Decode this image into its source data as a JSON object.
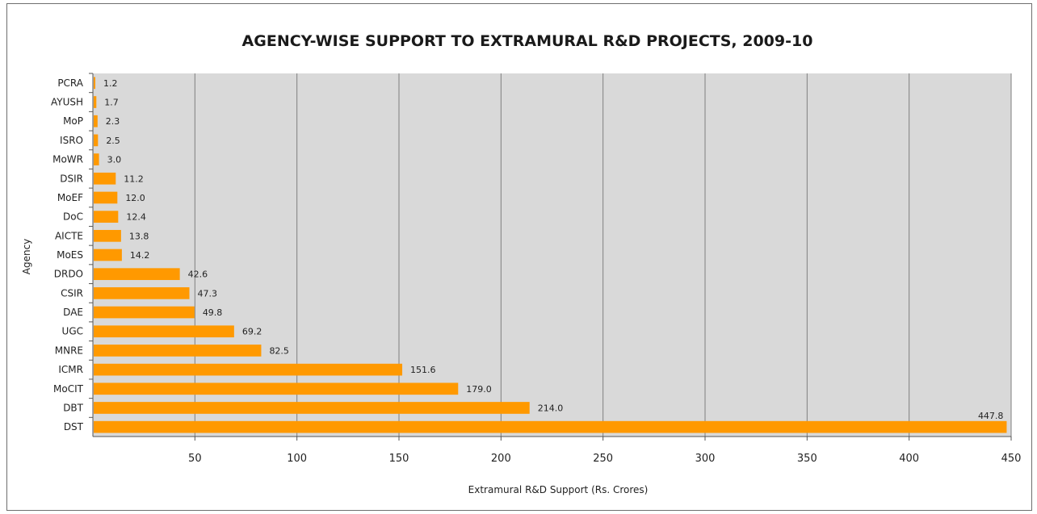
{
  "chart_data": {
    "type": "bar",
    "orientation": "horizontal",
    "title": "AGENCY-WISE SUPPORT TO EXTRAMURAL R&D PROJECTS, 2009-10",
    "xlabel": "Extramural R&D Support (Rs. Crores)",
    "ylabel": "Agency",
    "categories": [
      "PCRA",
      "AYUSH",
      "MoP",
      "ISRO",
      "MoWR",
      "DSIR",
      "MoEF",
      "DoC",
      "AICTE",
      "MoES",
      "DRDO",
      "CSIR",
      "DAE",
      "UGC",
      "MNRE",
      "ICMR",
      "MoCIT",
      "DBT",
      "DST"
    ],
    "values": [
      1.2,
      1.7,
      2.3,
      2.5,
      3.0,
      11.2,
      12.0,
      12.4,
      13.8,
      14.2,
      42.6,
      47.3,
      49.8,
      69.2,
      82.5,
      151.6,
      179.0,
      214.0,
      447.8
    ],
    "value_labels": [
      "1.2",
      "1.7",
      "2.3",
      "2.5",
      "3.0",
      "11.2",
      "12.0",
      "12.4",
      "13.8",
      "14.2",
      "42.6",
      "47.3",
      "49.8",
      "69.2",
      "82.5",
      "151.6",
      "179.0",
      "214.0",
      "447.8"
    ],
    "xlim": [
      0,
      450
    ],
    "xticks": [
      50,
      100,
      150,
      200,
      250,
      300,
      350,
      400,
      450
    ],
    "grid": true,
    "legend": "none",
    "colors": {
      "bar": "#FF9900",
      "plot_bg": "#D9D9D9",
      "grid": "#7f7f7f"
    }
  }
}
